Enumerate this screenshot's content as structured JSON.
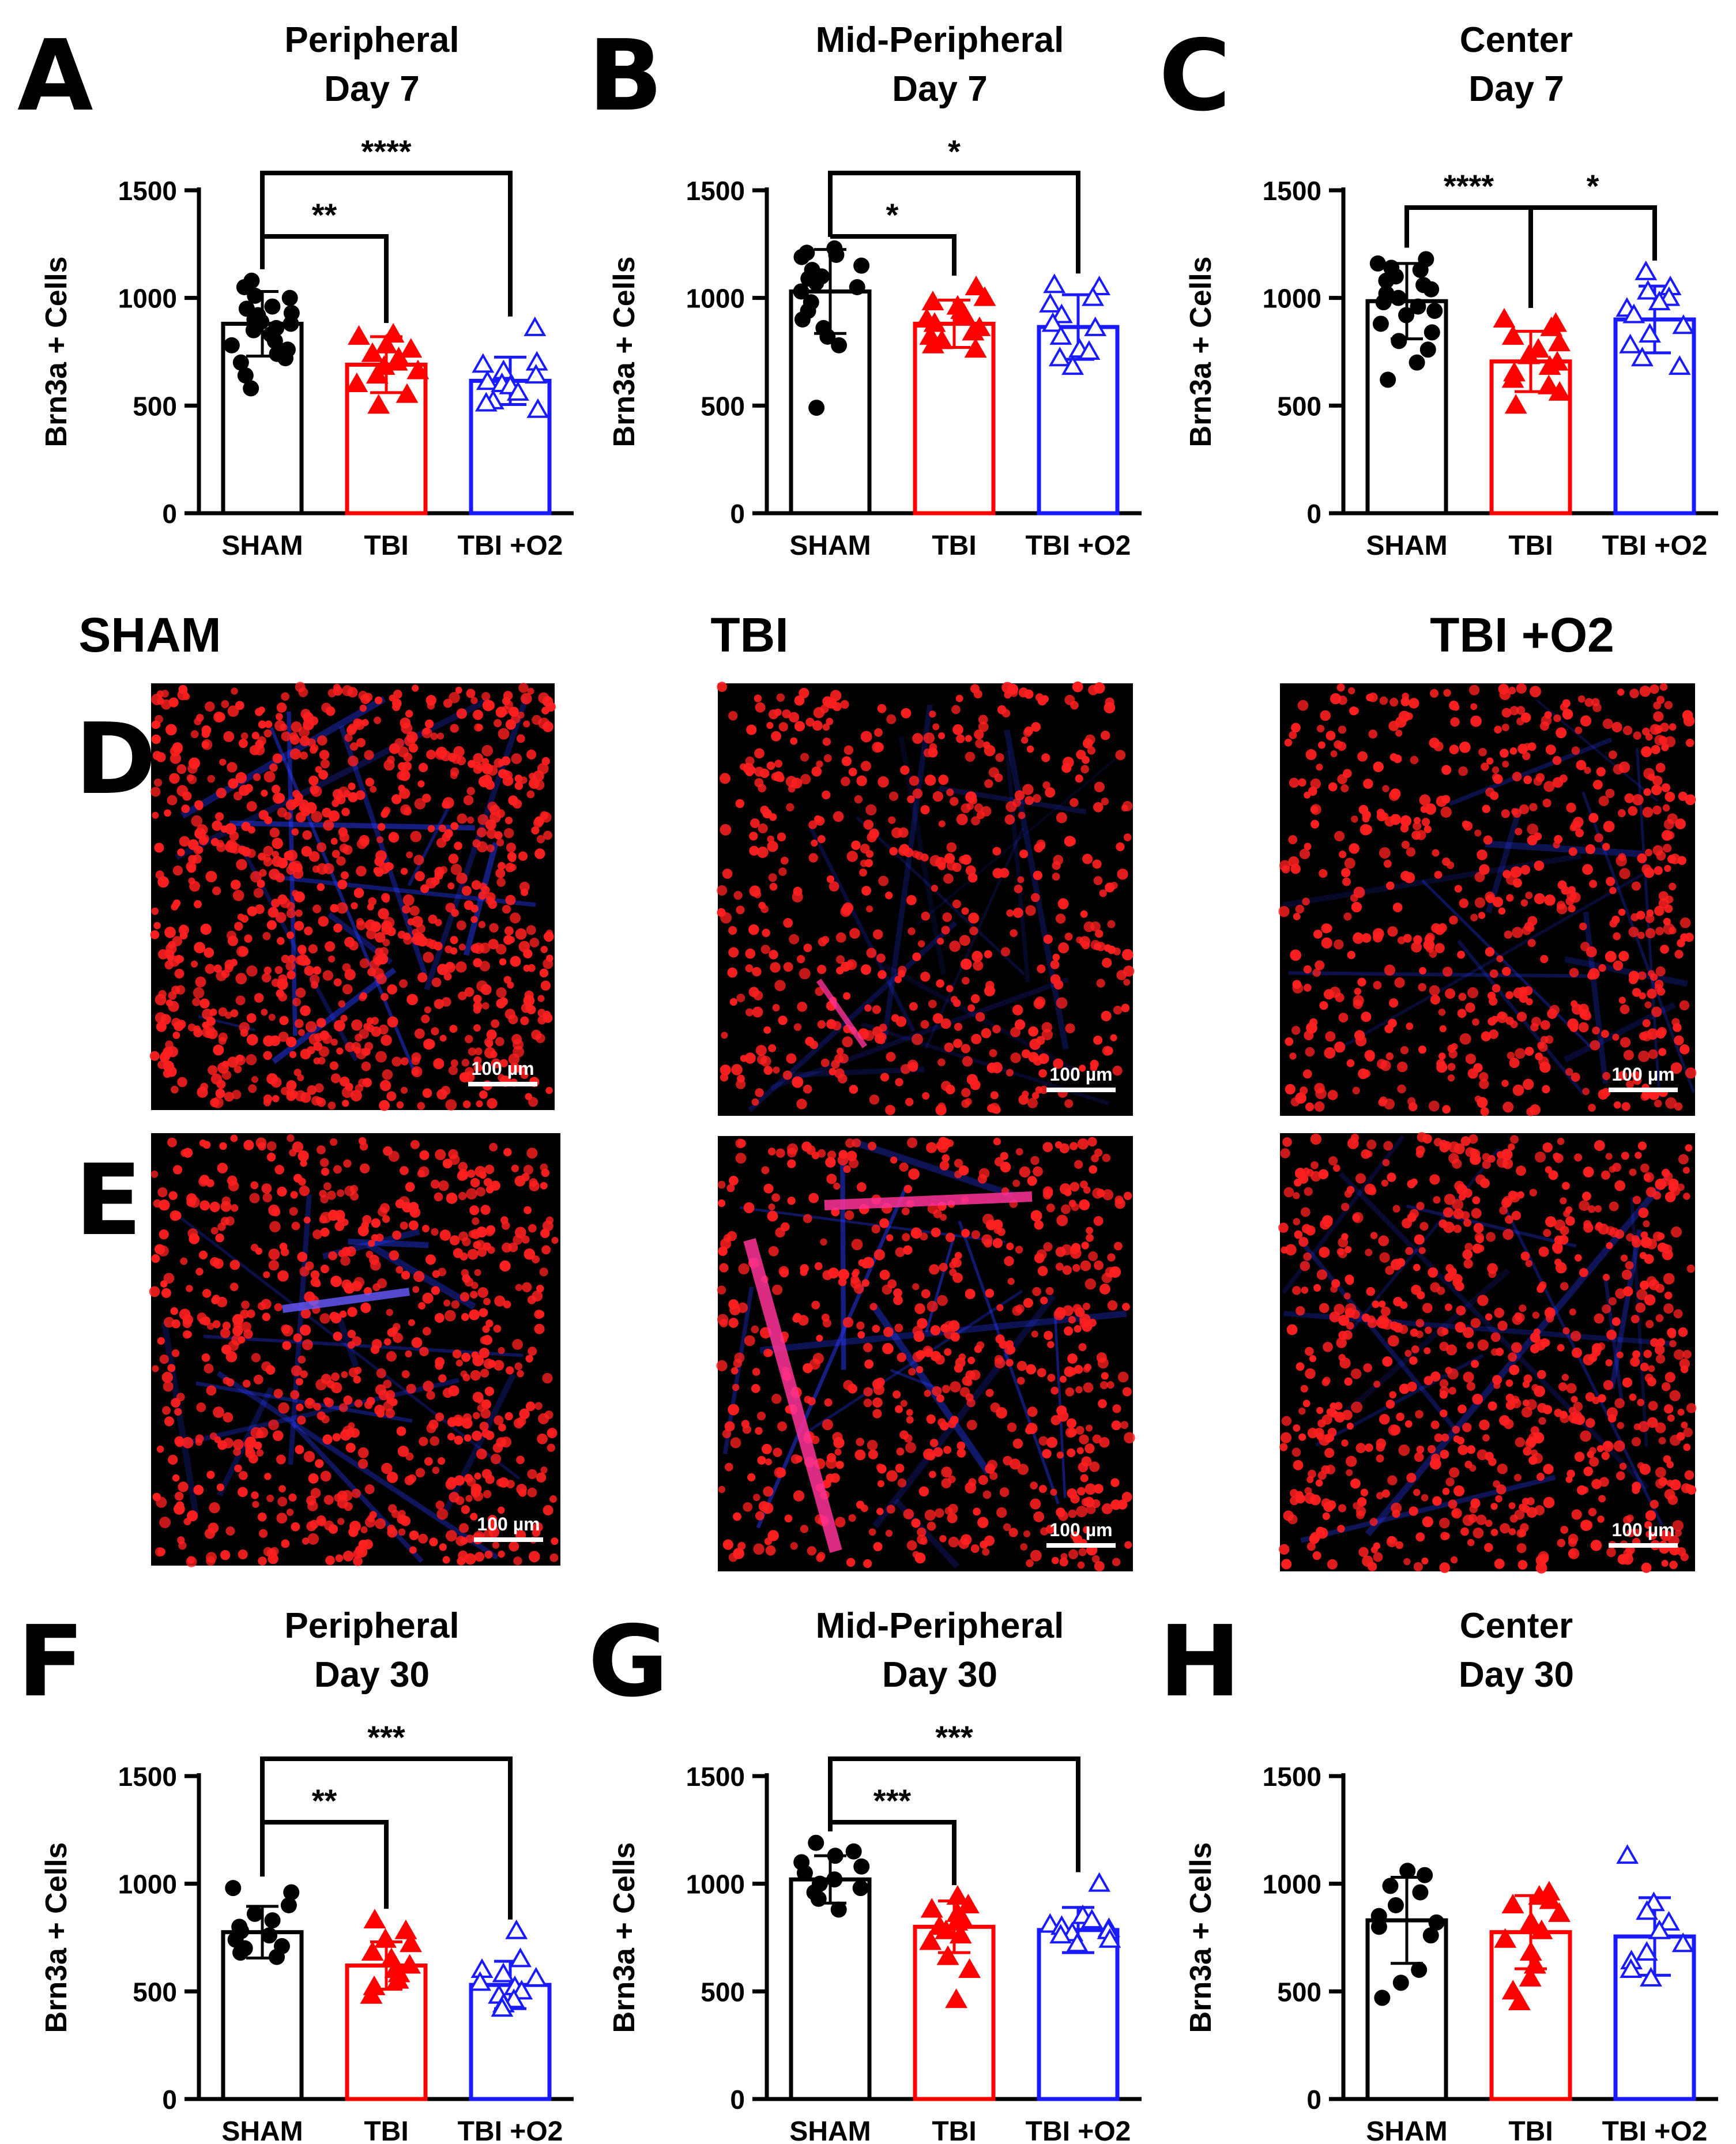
{
  "figure": {
    "colors": {
      "SHAM": "#000000",
      "TBI": "#ff0000",
      "TBI +O2": "#1a1aff"
    },
    "y_axis_label": "Brn3a + Cells",
    "group_headers": [
      "SHAM",
      "TBI",
      "TBI +O2"
    ],
    "panel_letters": {
      "D": "D",
      "E": "E"
    },
    "scale_bar_label": "100 µm"
  },
  "chart_data": [
    {
      "panel": "A",
      "type": "bar",
      "title": "Peripheral",
      "subtitle": "Day 7",
      "categories": [
        "SHAM",
        "TBI",
        "TBI +O2"
      ],
      "ylabel": "Brn3a + Cells",
      "ylim": [
        0,
        1500
      ],
      "yticks": [
        0,
        500,
        1000,
        1500
      ],
      "series": [
        {
          "name": "SHAM",
          "marker": "circle",
          "mean": 880,
          "sd": 150,
          "points": [
            1080,
            1050,
            1000,
            1010,
            960,
            950,
            930,
            920,
            900,
            890,
            880,
            860,
            850,
            830,
            800,
            780,
            760,
            740,
            720,
            700,
            640,
            580
          ]
        },
        {
          "name": "TBI",
          "marker": "triangle",
          "mean": 690,
          "sd": 130,
          "points": [
            830,
            820,
            780,
            760,
            740,
            720,
            700,
            680,
            660,
            640,
            600,
            550,
            500
          ]
        },
        {
          "name": "TBI +O2",
          "marker": "open-triangle",
          "mean": 615,
          "sd": 110,
          "points": [
            860,
            700,
            690,
            660,
            640,
            610,
            600,
            590,
            560,
            520,
            510,
            480
          ]
        }
      ],
      "significance": [
        {
          "from": "SHAM",
          "to": "TBI",
          "label": "**"
        },
        {
          "from": "SHAM",
          "to": "TBI +O2",
          "label": "****"
        }
      ]
    },
    {
      "panel": "B",
      "type": "bar",
      "title": "Mid-Peripheral",
      "subtitle": "Day 7",
      "categories": [
        "SHAM",
        "TBI",
        "TBI +O2"
      ],
      "ylabel": "Brn3a + Cells",
      "ylim": [
        0,
        1500
      ],
      "yticks": [
        0,
        500,
        1000,
        1500
      ],
      "series": [
        {
          "name": "SHAM",
          "marker": "circle",
          "mean": 1030,
          "sd": 195,
          "points": [
            1230,
            1210,
            1200,
            1190,
            1150,
            1130,
            1100,
            1090,
            1070,
            1050,
            1030,
            980,
            940,
            900,
            860,
            820,
            780,
            490
          ]
        },
        {
          "name": "TBI",
          "marker": "triangle",
          "mean": 880,
          "sd": 110,
          "points": [
            1050,
            1000,
            980,
            960,
            940,
            920,
            900,
            880,
            860,
            840,
            820,
            800,
            780,
            760
          ]
        },
        {
          "name": "TBI +O2",
          "marker": "open-triangle",
          "mean": 865,
          "sd": 150,
          "points": [
            1060,
            1050,
            1000,
            970,
            920,
            880,
            860,
            820,
            760,
            750,
            720,
            680
          ]
        }
      ],
      "significance": [
        {
          "from": "SHAM",
          "to": "TBI",
          "label": "*"
        },
        {
          "from": "SHAM",
          "to": "TBI +O2",
          "label": "*"
        }
      ]
    },
    {
      "panel": "C",
      "type": "bar",
      "title": "Center",
      "subtitle": "Day 7",
      "categories": [
        "SHAM",
        "TBI",
        "TBI +O2"
      ],
      "ylabel": "Brn3a + Cells",
      "ylim": [
        0,
        1500
      ],
      "yticks": [
        0,
        500,
        1000,
        1500
      ],
      "series": [
        {
          "name": "SHAM",
          "marker": "circle",
          "mean": 985,
          "sd": 175,
          "points": [
            1180,
            1160,
            1140,
            1130,
            1100,
            1080,
            1060,
            1040,
            1020,
            1000,
            980,
            960,
            940,
            920,
            880,
            840,
            800,
            760,
            700,
            620
          ]
        },
        {
          "name": "TBI",
          "marker": "triangle",
          "mean": 705,
          "sd": 140,
          "points": [
            900,
            880,
            860,
            820,
            790,
            760,
            730,
            700,
            680,
            650,
            620,
            590,
            560,
            500
          ]
        },
        {
          "name": "TBI +O2",
          "marker": "open-triangle",
          "mean": 900,
          "sd": 155,
          "points": [
            1120,
            1050,
            1030,
            1000,
            980,
            950,
            920,
            870,
            830,
            780,
            720,
            680
          ]
        }
      ],
      "significance": [
        {
          "from": "SHAM",
          "to": "TBI",
          "label": "****"
        },
        {
          "from": "TBI",
          "to": "TBI +O2",
          "label": "*"
        }
      ]
    },
    {
      "panel": "F",
      "type": "bar",
      "title": "Peripheral",
      "subtitle": "Day 30",
      "categories": [
        "SHAM",
        "TBI",
        "TBI +O2"
      ],
      "ylabel": "Brn3a + Cells",
      "ylim": [
        0,
        1500
      ],
      "yticks": [
        0,
        500,
        1000,
        1500
      ],
      "series": [
        {
          "name": "SHAM",
          "marker": "circle",
          "mean": 775,
          "sd": 120,
          "points": [
            980,
            960,
            900,
            860,
            830,
            800,
            780,
            760,
            740,
            710,
            700,
            680,
            660
          ]
        },
        {
          "name": "TBI",
          "marker": "triangle",
          "mean": 620,
          "sd": 110,
          "points": [
            830,
            780,
            740,
            720,
            680,
            650,
            620,
            600,
            580,
            550,
            520,
            480
          ]
        },
        {
          "name": "TBI +O2",
          "marker": "open-triangle",
          "mean": 530,
          "sd": 110,
          "points": [
            780,
            650,
            600,
            580,
            560,
            540,
            520,
            500,
            480,
            460,
            440,
            420
          ]
        }
      ],
      "significance": [
        {
          "from": "SHAM",
          "to": "TBI",
          "label": "**"
        },
        {
          "from": "SHAM",
          "to": "TBI +O2",
          "label": "***"
        }
      ]
    },
    {
      "panel": "G",
      "type": "bar",
      "title": "Mid-Peripheral",
      "subtitle": "Day 30",
      "categories": [
        "SHAM",
        "TBI",
        "TBI +O2"
      ],
      "ylabel": "Brn3a + Cells",
      "ylim": [
        0,
        1500
      ],
      "yticks": [
        0,
        500,
        1000,
        1500
      ],
      "series": [
        {
          "name": "SHAM",
          "marker": "circle",
          "mean": 1020,
          "sd": 110,
          "points": [
            1190,
            1150,
            1130,
            1100,
            1080,
            1050,
            1020,
            1000,
            980,
            960,
            930,
            880
          ]
        },
        {
          "name": "TBI",
          "marker": "triangle",
          "mean": 800,
          "sd": 120,
          "points": [
            940,
            900,
            880,
            860,
            840,
            820,
            800,
            780,
            760,
            730,
            660,
            600,
            460
          ]
        },
        {
          "name": "TBI +O2",
          "marker": "open-triangle",
          "mean": 785,
          "sd": 105,
          "points": [
            1000,
            850,
            830,
            810,
            800,
            790,
            780,
            770,
            760,
            740,
            720
          ]
        }
      ],
      "significance": [
        {
          "from": "SHAM",
          "to": "TBI",
          "label": "***"
        },
        {
          "from": "SHAM",
          "to": "TBI +O2",
          "label": "***"
        }
      ]
    },
    {
      "panel": "H",
      "type": "bar",
      "title": "Center",
      "subtitle": "Day 30",
      "categories": [
        "SHAM",
        "TBI",
        "TBI +O2"
      ],
      "ylabel": "Brn3a + Cells",
      "ylim": [
        0,
        1500
      ],
      "yticks": [
        0,
        500,
        1000,
        1500
      ],
      "series": [
        {
          "name": "SHAM",
          "marker": "circle",
          "mean": 830,
          "sd": 200,
          "points": [
            1060,
            1040,
            990,
            960,
            900,
            850,
            820,
            800,
            760,
            600,
            540,
            470
          ]
        },
        {
          "name": "TBI",
          "marker": "triangle",
          "mean": 775,
          "sd": 170,
          "points": [
            960,
            940,
            920,
            900,
            860,
            820,
            780,
            740,
            680,
            620,
            560,
            500,
            450
          ]
        },
        {
          "name": "TBI +O2",
          "marker": "open-triangle",
          "mean": 755,
          "sd": 180,
          "points": [
            1130,
            910,
            870,
            820,
            780,
            720,
            680,
            640,
            600,
            560
          ]
        }
      ],
      "significance": []
    }
  ]
}
